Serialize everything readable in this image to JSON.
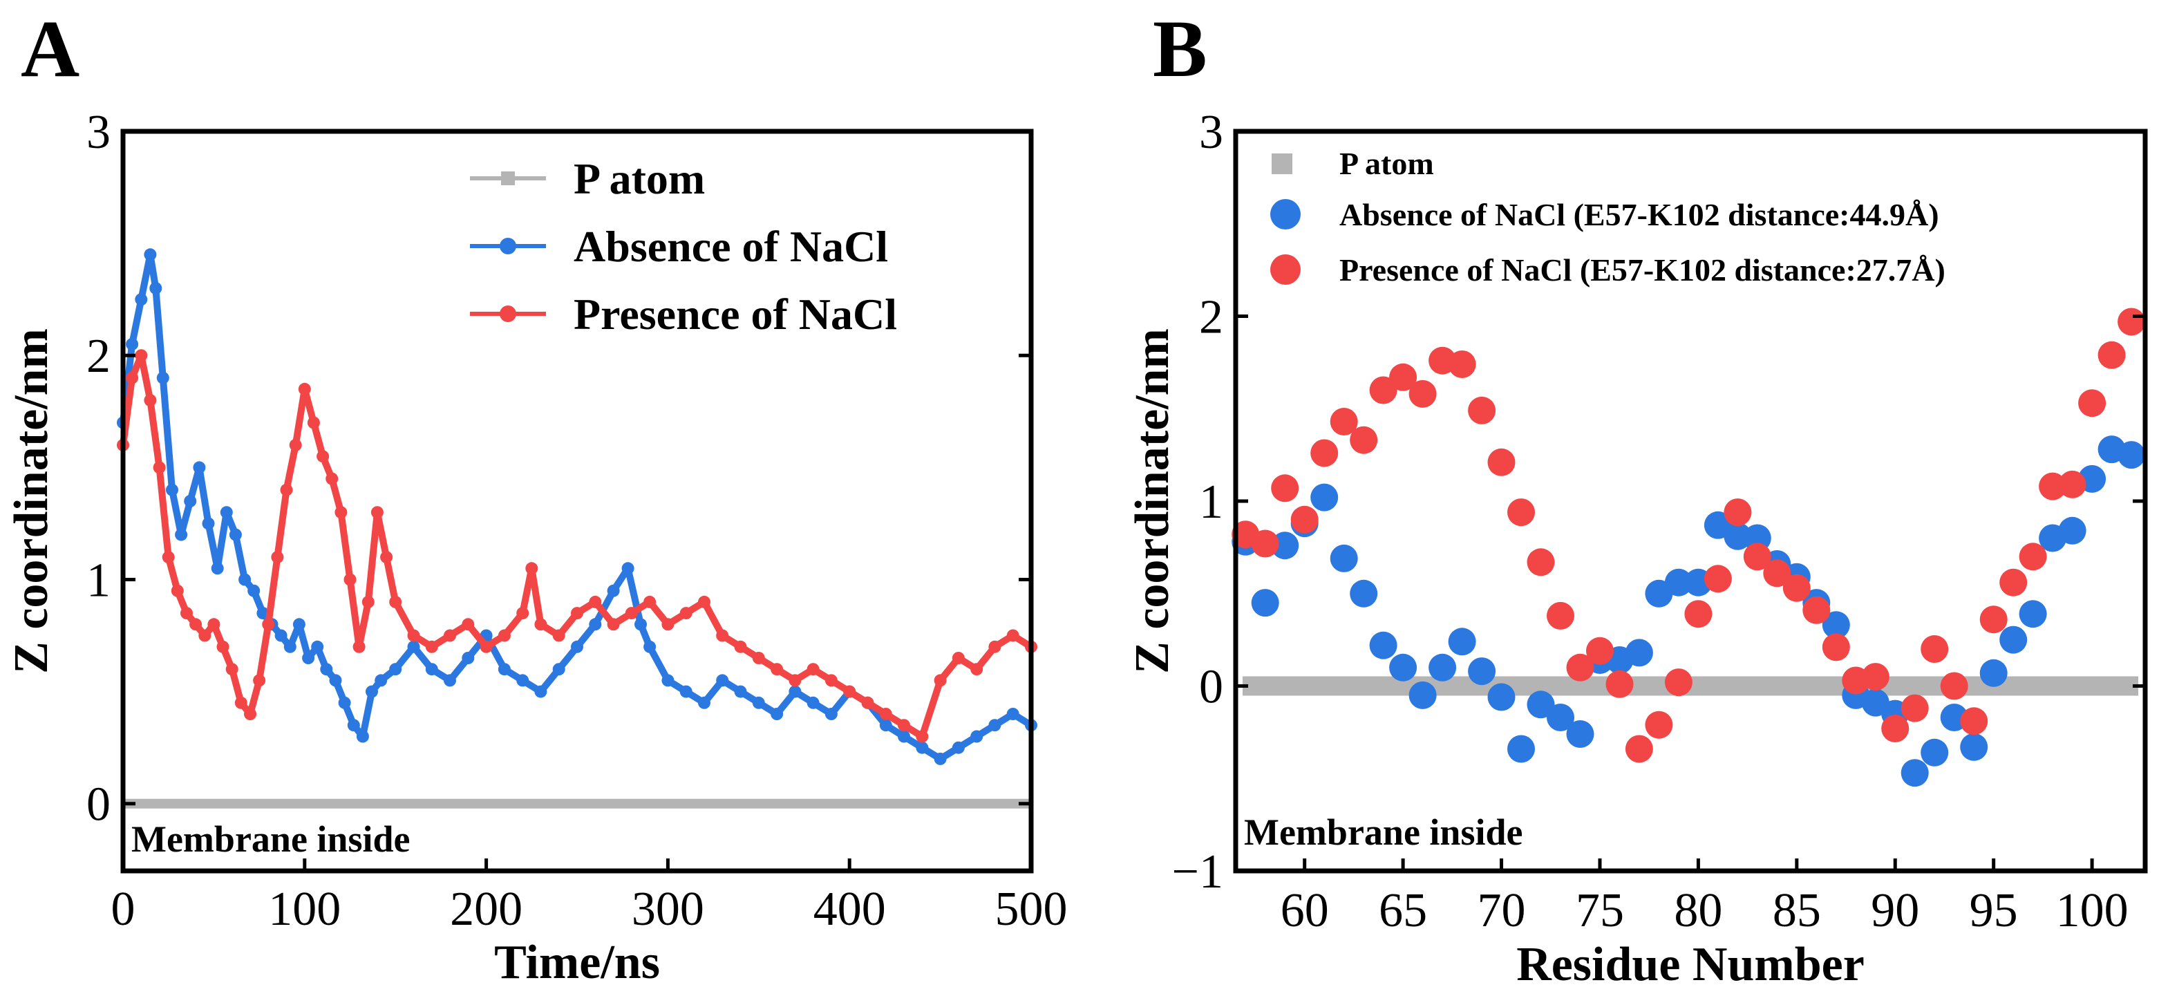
{
  "colors": {
    "p_atom": "#b4b4b4",
    "absence": "#2a78e0",
    "presence": "#f24646",
    "frame": "#000000"
  },
  "chart_data": [
    {
      "panel": "A",
      "type": "line",
      "xlabel": "Time/ns",
      "ylabel": "Z coordinate/nm",
      "xlim": [
        0,
        500
      ],
      "ylim": [
        -0.3,
        3
      ],
      "xticks": [
        0,
        100,
        200,
        300,
        400,
        500
      ],
      "yticks": [
        0,
        1,
        2,
        3
      ],
      "annotation": "Membrane inside",
      "legend_position": "top-right",
      "legend": [
        "P atom",
        "Absence of NaCl",
        "Presence of NaCl"
      ],
      "series": [
        {
          "name": "P atom",
          "x": [
            0,
            500
          ],
          "y": [
            0,
            0
          ]
        },
        {
          "name": "Absence of NaCl",
          "x": [
            0,
            5,
            10,
            15,
            18,
            22,
            27,
            32,
            37,
            42,
            47,
            52,
            57,
            62,
            67,
            72,
            77,
            82,
            87,
            92,
            97,
            102,
            107,
            112,
            117,
            122,
            127,
            132,
            137,
            142,
            150,
            160,
            170,
            180,
            190,
            200,
            210,
            220,
            230,
            240,
            250,
            260,
            270,
            278,
            285,
            290,
            300,
            310,
            320,
            330,
            340,
            350,
            360,
            370,
            380,
            390,
            400,
            410,
            420,
            430,
            440,
            450,
            460,
            470,
            480,
            490,
            500
          ],
          "y": [
            1.7,
            2.05,
            2.25,
            2.45,
            2.3,
            1.9,
            1.4,
            1.2,
            1.35,
            1.5,
            1.25,
            1.05,
            1.3,
            1.2,
            1.0,
            0.95,
            0.85,
            0.8,
            0.75,
            0.7,
            0.8,
            0.65,
            0.7,
            0.6,
            0.55,
            0.45,
            0.35,
            0.3,
            0.5,
            0.55,
            0.6,
            0.7,
            0.6,
            0.55,
            0.65,
            0.75,
            0.6,
            0.55,
            0.5,
            0.6,
            0.7,
            0.8,
            0.95,
            1.05,
            0.8,
            0.7,
            0.55,
            0.5,
            0.45,
            0.55,
            0.5,
            0.45,
            0.4,
            0.5,
            0.45,
            0.4,
            0.5,
            0.45,
            0.35,
            0.3,
            0.25,
            0.2,
            0.25,
            0.3,
            0.35,
            0.4,
            0.35
          ]
        },
        {
          "name": "Presence of NaCl",
          "x": [
            0,
            5,
            10,
            15,
            20,
            25,
            30,
            35,
            40,
            45,
            50,
            55,
            60,
            65,
            70,
            75,
            80,
            85,
            90,
            95,
            100,
            105,
            110,
            115,
            120,
            125,
            130,
            135,
            140,
            145,
            150,
            160,
            170,
            180,
            190,
            200,
            210,
            220,
            225,
            230,
            240,
            250,
            260,
            270,
            280,
            290,
            300,
            310,
            320,
            330,
            340,
            350,
            360,
            370,
            380,
            390,
            400,
            410,
            420,
            430,
            440,
            450,
            460,
            470,
            480,
            490,
            500
          ],
          "y": [
            1.6,
            1.9,
            2.0,
            1.8,
            1.5,
            1.1,
            0.95,
            0.85,
            0.8,
            0.75,
            0.8,
            0.7,
            0.6,
            0.45,
            0.4,
            0.55,
            0.8,
            1.1,
            1.4,
            1.6,
            1.85,
            1.7,
            1.55,
            1.45,
            1.3,
            1.0,
            0.7,
            0.9,
            1.3,
            1.1,
            0.9,
            0.75,
            0.7,
            0.75,
            0.8,
            0.7,
            0.75,
            0.85,
            1.05,
            0.8,
            0.75,
            0.85,
            0.9,
            0.8,
            0.85,
            0.9,
            0.8,
            0.85,
            0.9,
            0.75,
            0.7,
            0.65,
            0.6,
            0.55,
            0.6,
            0.55,
            0.5,
            0.45,
            0.4,
            0.35,
            0.3,
            0.55,
            0.65,
            0.6,
            0.7,
            0.75,
            0.7
          ]
        }
      ]
    },
    {
      "panel": "B",
      "type": "scatter",
      "xlabel": "Residue Number",
      "ylabel": "Z coordinate/nm",
      "xlim": [
        56.5,
        102.7
      ],
      "ylim": [
        -1,
        3
      ],
      "xticks": [
        60,
        65,
        70,
        75,
        80,
        85,
        90,
        95,
        100
      ],
      "yticks": [
        -1,
        0,
        1,
        2,
        3
      ],
      "annotation": "Membrane inside",
      "legend_position": "top-left",
      "legend": [
        "P atom",
        "Absence of NaCl (E57-K102 distance:44.9Å)",
        "Presence of NaCl (E57-K102 distance:27.7Å)"
      ],
      "series": [
        {
          "name": "P atom",
          "x": [
            56.5,
            102.7
          ],
          "y": [
            0,
            0
          ]
        },
        {
          "name": "Absence of NaCl (E57-K102 distance:44.9Å)",
          "x": [
            57,
            58,
            59,
            60,
            61,
            62,
            63,
            64,
            65,
            66,
            67,
            68,
            69,
            70,
            71,
            72,
            73,
            74,
            75,
            76,
            77,
            78,
            79,
            80,
            81,
            82,
            83,
            84,
            85,
            86,
            87,
            88,
            89,
            90,
            91,
            92,
            93,
            94,
            95,
            96,
            97,
            98,
            99,
            100,
            101,
            102
          ],
          "y": [
            0.78,
            0.45,
            0.76,
            0.88,
            1.02,
            0.69,
            0.5,
            0.22,
            0.1,
            -0.05,
            0.1,
            0.24,
            0.08,
            -0.06,
            -0.34,
            -0.1,
            -0.17,
            -0.26,
            0.14,
            0.14,
            0.18,
            0.5,
            0.56,
            0.56,
            0.87,
            0.81,
            0.8,
            0.66,
            0.59,
            0.45,
            0.33,
            -0.05,
            -0.09,
            -0.15,
            -0.47,
            -0.36,
            -0.17,
            -0.33,
            0.07,
            0.25,
            0.39,
            0.8,
            0.84,
            1.12,
            1.28,
            1.25
          ]
        },
        {
          "name": "Presence of NaCl (E57-K102 distance:27.7Å)",
          "x": [
            57,
            58,
            59,
            60,
            61,
            62,
            63,
            64,
            65,
            66,
            67,
            68,
            69,
            70,
            71,
            72,
            73,
            74,
            75,
            76,
            77,
            78,
            79,
            80,
            81,
            82,
            83,
            84,
            85,
            86,
            87,
            88,
            89,
            90,
            91,
            92,
            93,
            94,
            95,
            96,
            97,
            98,
            99,
            100,
            101,
            102
          ],
          "y": [
            0.82,
            0.77,
            1.07,
            0.9,
            1.26,
            1.43,
            1.33,
            1.6,
            1.67,
            1.58,
            1.76,
            1.74,
            1.49,
            1.21,
            0.94,
            0.67,
            0.38,
            0.1,
            0.19,
            0.01,
            -0.34,
            -0.21,
            0.02,
            0.39,
            0.58,
            0.94,
            0.7,
            0.61,
            0.53,
            0.41,
            0.21,
            0.03,
            0.05,
            -0.23,
            -0.12,
            0.2,
            0.0,
            -0.19,
            0.36,
            0.56,
            0.7,
            1.08,
            1.09,
            1.53,
            1.79,
            1.97
          ]
        }
      ]
    }
  ]
}
